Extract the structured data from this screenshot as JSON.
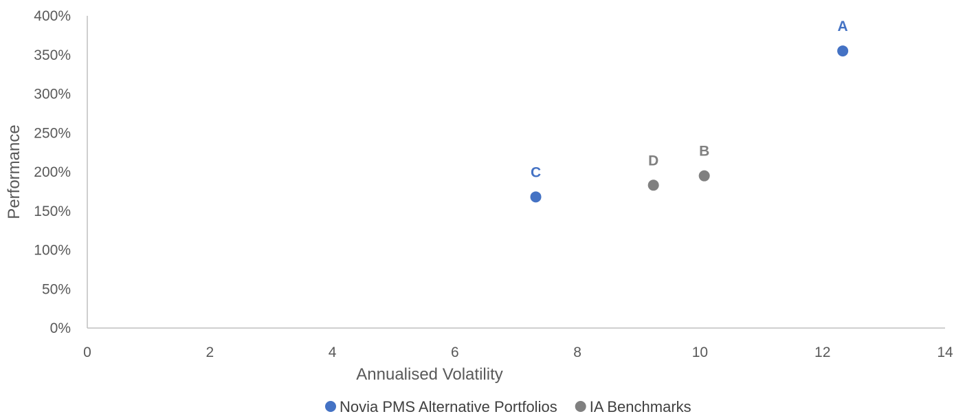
{
  "chart_data": {
    "type": "scatter",
    "title": "",
    "xlabel": "Annualised Volatility",
    "ylabel": "Performance",
    "xlim": [
      0,
      14
    ],
    "ylim": [
      0,
      400
    ],
    "x_ticks": [
      0,
      2,
      4,
      6,
      8,
      10,
      12,
      14
    ],
    "y_ticks": [
      0,
      50,
      100,
      150,
      200,
      250,
      300,
      350,
      400
    ],
    "y_tick_suffix": "%",
    "grid": false,
    "legend_position": "bottom",
    "series": [
      {
        "name": "Novia PMS Alternative Portfolios",
        "color": "#4472C4",
        "points": [
          {
            "label": "A",
            "x": 12.33,
            "y": 355
          },
          {
            "label": "C",
            "x": 7.32,
            "y": 168
          }
        ]
      },
      {
        "name": "IA Benchmarks",
        "color": "#808080",
        "points": [
          {
            "label": "B",
            "x": 10.07,
            "y": 195
          },
          {
            "label": "D",
            "x": 9.24,
            "y": 183
          }
        ]
      }
    ]
  }
}
